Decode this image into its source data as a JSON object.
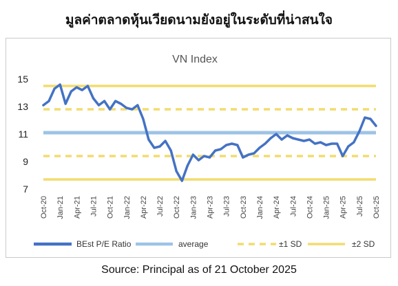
{
  "page_title": "มูลค่าตลาดหุ้นเวียดนามยังอยู่ในระดับที่น่าสนใจ",
  "source_note": "Source: Principal as of 21 October 2025",
  "colors": {
    "pe": "#4472c4",
    "average": "#9dc3e6",
    "sd": "#f2dc6e"
  },
  "chart_data": {
    "type": "line",
    "title": "VN Index",
    "xlabel": "",
    "ylabel": "",
    "ylim": [
      7,
      15
    ],
    "yticks": [
      7,
      9,
      11,
      13,
      15
    ],
    "x_tick_labels": [
      "Oct-20",
      "Jan-21",
      "Apr-21",
      "Jul-21",
      "Oct-21",
      "Jan-22",
      "Apr-22",
      "Jul-22",
      "Oct-22",
      "Jan-23",
      "Apr-23",
      "Jul-23",
      "Oct-23",
      "Jan-24",
      "Apr-24",
      "Jul-24",
      "Oct-24",
      "Jan-25",
      "Apr-25",
      "Jul-25",
      "Oct-25"
    ],
    "grid": false,
    "legend_position": "bottom",
    "series": [
      {
        "name": "BEst P/E Ratio",
        "style": "solid-thick",
        "x": [
          "Oct-20",
          "Nov-20",
          "Dec-20",
          "Jan-21",
          "Feb-21",
          "Mar-21",
          "Apr-21",
          "May-21",
          "Jun-21",
          "Jul-21",
          "Aug-21",
          "Sep-21",
          "Oct-21",
          "Nov-21",
          "Dec-21",
          "Jan-22",
          "Feb-22",
          "Mar-22",
          "Apr-22",
          "May-22",
          "Jun-22",
          "Jul-22",
          "Aug-22",
          "Sep-22",
          "Oct-22",
          "Nov-22",
          "Dec-22",
          "Jan-23",
          "Feb-23",
          "Mar-23",
          "Apr-23",
          "May-23",
          "Jun-23",
          "Jul-23",
          "Aug-23",
          "Sep-23",
          "Oct-23",
          "Nov-23",
          "Dec-23",
          "Jan-24",
          "Feb-24",
          "Mar-24",
          "Apr-24",
          "May-24",
          "Jun-24",
          "Jul-24",
          "Aug-24",
          "Sep-24",
          "Oct-24",
          "Nov-24",
          "Dec-24",
          "Jan-25",
          "Feb-25",
          "Mar-25",
          "Apr-25",
          "May-25",
          "Jun-25",
          "Jul-25",
          "Aug-25",
          "Sep-25",
          "Oct-25"
        ],
        "values": [
          13.1,
          13.4,
          14.3,
          14.6,
          13.2,
          14.1,
          14.4,
          14.2,
          14.5,
          13.6,
          13.1,
          13.4,
          12.8,
          13.4,
          13.2,
          12.9,
          12.8,
          13.1,
          12.1,
          10.6,
          10.0,
          10.1,
          10.5,
          9.8,
          8.3,
          7.6,
          8.7,
          9.5,
          9.1,
          9.4,
          9.3,
          9.8,
          9.9,
          10.2,
          10.3,
          10.2,
          9.3,
          9.5,
          9.6,
          10.0,
          10.3,
          10.7,
          11.0,
          10.6,
          10.9,
          10.7,
          10.6,
          10.5,
          10.6,
          10.3,
          10.4,
          10.2,
          10.3,
          10.3,
          9.4,
          10.1,
          10.4,
          11.2,
          12.2,
          12.1,
          11.6
        ]
      },
      {
        "name": "average",
        "style": "solid",
        "constant": 11.1
      },
      {
        "name": "±1 SD",
        "style": "dashed",
        "constants": [
          12.8,
          9.4
        ]
      },
      {
        "name": "±2 SD",
        "style": "solid",
        "constants": [
          14.5,
          7.7
        ]
      }
    ]
  }
}
